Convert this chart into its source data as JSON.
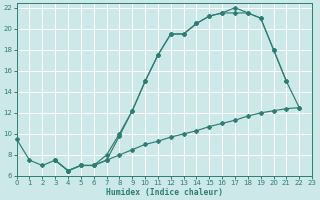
{
  "xlabel": "Humidex (Indice chaleur)",
  "bg_color": "#cce8e8",
  "grid_color": "#ffffff",
  "line_color": "#2d7d74",
  "xlim": [
    0,
    23
  ],
  "ylim": [
    6,
    22.4
  ],
  "xticks": [
    0,
    1,
    2,
    3,
    4,
    5,
    6,
    7,
    8,
    9,
    10,
    11,
    12,
    13,
    14,
    15,
    16,
    17,
    18,
    19,
    20,
    21,
    22,
    23
  ],
  "yticks": [
    6,
    8,
    10,
    12,
    14,
    16,
    18,
    20,
    22
  ],
  "curve1_x": [
    0,
    1,
    2,
    3,
    4,
    5,
    6,
    7,
    8,
    9,
    10,
    11,
    12,
    13,
    14,
    15,
    16,
    17,
    18,
    19,
    20,
    21
  ],
  "curve1_y": [
    9.5,
    7.5,
    7.0,
    7.5,
    6.5,
    7.0,
    7.0,
    8.0,
    10.0,
    12.2,
    15.0,
    17.5,
    19.5,
    19.5,
    20.5,
    21.2,
    21.5,
    22.0,
    21.5,
    21.0,
    18.0,
    15.0
  ],
  "curve2_x": [
    3,
    4,
    5,
    6,
    7,
    8,
    9,
    10,
    11,
    12,
    13,
    14,
    15,
    16,
    17,
    18,
    19,
    20,
    21,
    22
  ],
  "curve2_y": [
    7.5,
    6.5,
    7.0,
    7.0,
    7.5,
    9.8,
    12.2,
    15.0,
    17.5,
    19.5,
    19.5,
    20.5,
    21.2,
    21.5,
    21.5,
    21.5,
    21.0,
    18.0,
    15.0,
    12.5
  ],
  "curve3_x": [
    3,
    4,
    5,
    6,
    7,
    8,
    9,
    10,
    11,
    12,
    13,
    14,
    15,
    16,
    17,
    18,
    19,
    20,
    21,
    22
  ],
  "curve3_y": [
    7.5,
    6.5,
    7.0,
    7.0,
    7.5,
    8.0,
    8.5,
    9.0,
    9.3,
    9.7,
    10.0,
    10.3,
    10.7,
    11.0,
    11.3,
    11.7,
    12.0,
    12.2,
    12.4,
    12.5
  ]
}
